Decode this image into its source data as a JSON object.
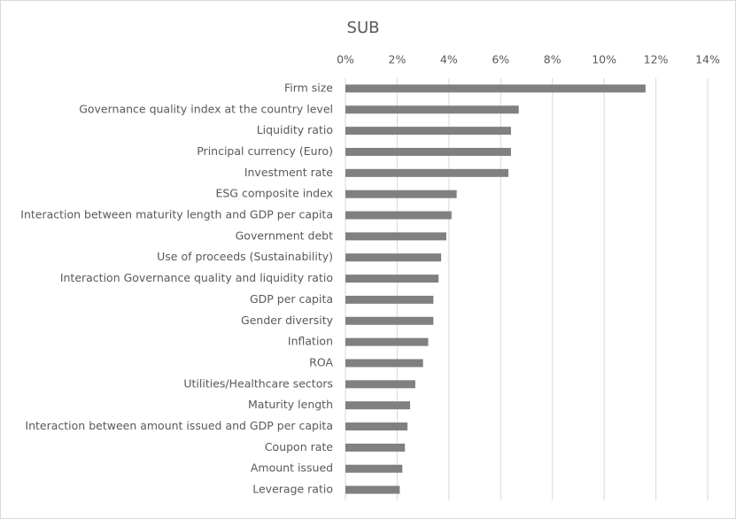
{
  "chart_data": {
    "type": "barh",
    "title": "SUB",
    "categories": [
      "Firm size",
      "Governance quality index at the country level",
      "Liquidity ratio",
      "Principal currency (Euro)",
      "Investment rate",
      "ESG composite index",
      "Interaction between maturity length and GDP per capita",
      "Government debt",
      "Use of proceeds (Sustainability)",
      "Interaction Governance quality and liquidity ratio",
      "GDP per capita",
      "Gender diversity",
      "Inflation",
      "ROA",
      "Utilities/Healthcare sectors",
      "Maturity length",
      "Interaction between amount issued and GDP per capita",
      "Coupon rate",
      "Amount issued",
      "Leverage ratio"
    ],
    "values": [
      11.6,
      6.7,
      6.4,
      6.4,
      6.3,
      4.3,
      4.1,
      3.9,
      3.7,
      3.6,
      3.4,
      3.4,
      3.2,
      3.0,
      2.7,
      2.5,
      2.4,
      2.3,
      2.2,
      2.1
    ],
    "color": "#808080",
    "xlim": [
      0,
      14
    ],
    "xticks": [
      {
        "value": 0,
        "label": "0%"
      },
      {
        "value": 2,
        "label": "2%"
      },
      {
        "value": 4,
        "label": "4%"
      },
      {
        "value": 6,
        "label": "6%"
      },
      {
        "value": 8,
        "label": "8%"
      },
      {
        "value": 10,
        "label": "10%"
      },
      {
        "value": 12,
        "label": "12%"
      },
      {
        "value": 14,
        "label": "14%"
      }
    ],
    "grid": true
  }
}
